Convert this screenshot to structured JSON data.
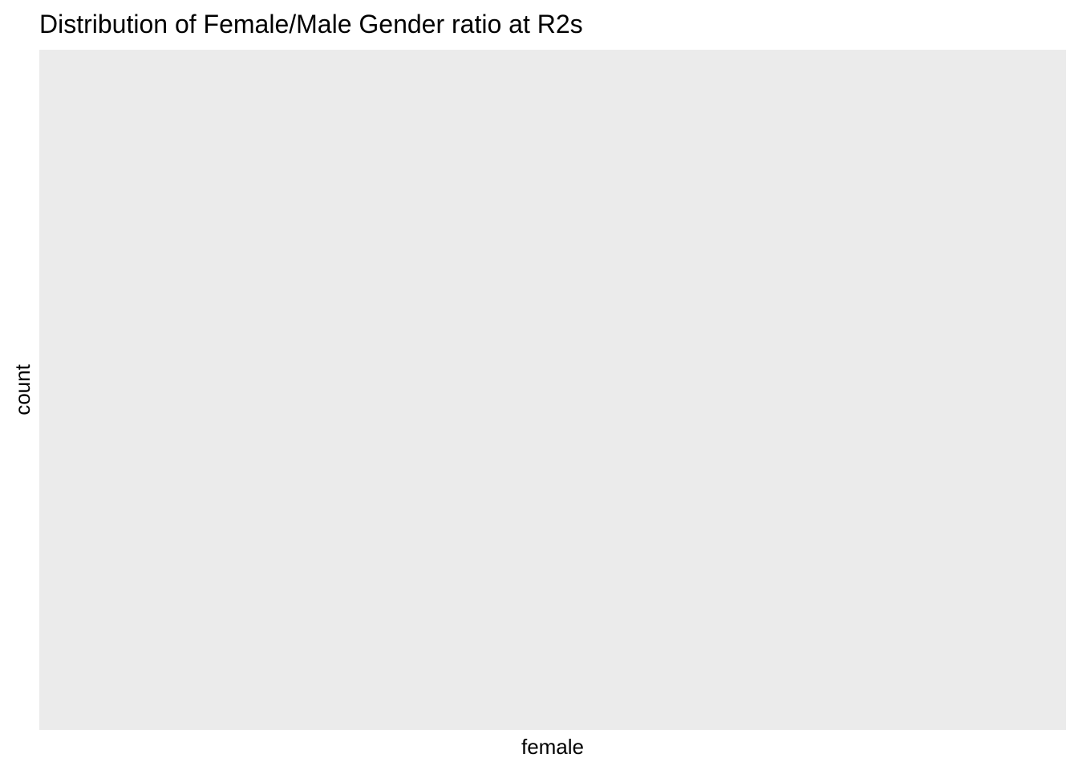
{
  "colors": {
    "panel_background": "#EBEBEB",
    "page_background": "#FFFFFF",
    "text": "#000000"
  },
  "chart_data": {
    "type": "bar",
    "title": "Distribution of Female/Male Gender ratio at R2s",
    "xlabel": "female",
    "ylabel": "count",
    "categories": [],
    "values": [],
    "grid": false,
    "legend": "none"
  }
}
